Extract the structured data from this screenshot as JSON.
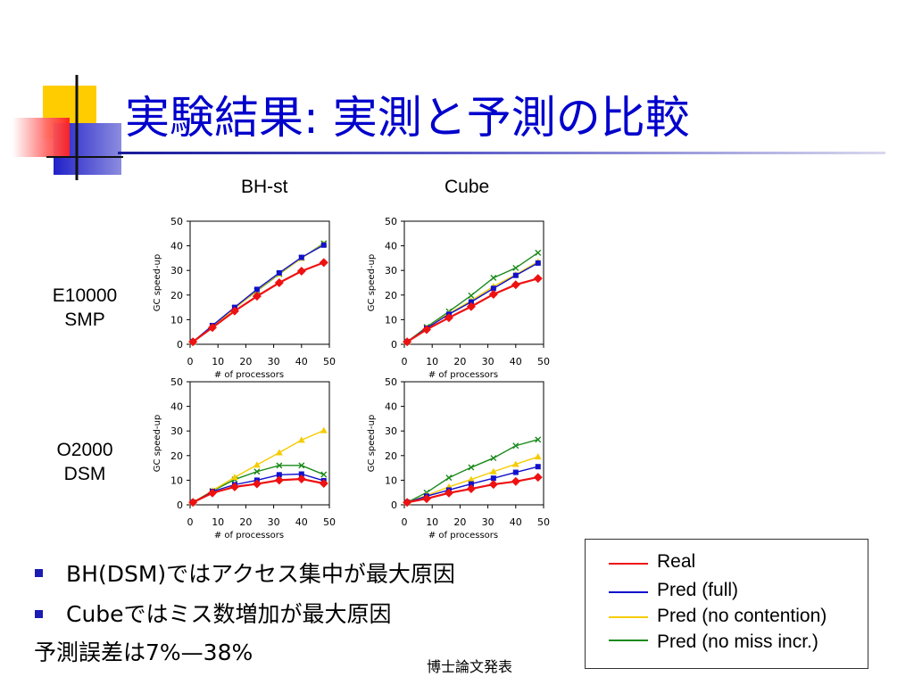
{
  "slide": {
    "title": "実験結果: 実測と予測の比較",
    "column_labels": [
      "BH-st",
      "Cube"
    ],
    "row_labels": [
      [
        "E10000",
        "SMP"
      ],
      [
        "O2000",
        "DSM"
      ]
    ],
    "bullets": [
      "BH(DSM)ではアクセス集中が最大原因",
      "Cubeではミス数増加が最大原因"
    ],
    "note": "予測誤差は7%—38%",
    "footer": "博士論文発表"
  },
  "legend": [
    {
      "label": "Real",
      "color": "#ee1111"
    },
    {
      "label": "Pred (full)",
      "color": "#1010cc"
    },
    {
      "label": "Pred (no contention)",
      "color": "#f5cc00"
    },
    {
      "label": "Pred (no miss incr.)",
      "color": "#1a8a1a"
    }
  ],
  "chart_data": [
    {
      "type": "line",
      "xlabel": "# of processors",
      "ylabel": "GC speed-up",
      "xlim": [
        0,
        50
      ],
      "ylim": [
        0,
        50
      ],
      "xticks": [
        0,
        10,
        20,
        30,
        40,
        50
      ],
      "yticks": [
        0,
        10,
        20,
        30,
        40,
        50
      ],
      "x": [
        1,
        8,
        16,
        24,
        32,
        40,
        48
      ],
      "series": [
        {
          "name": "Real",
          "values": [
            1,
            6.8,
            13.5,
            19.5,
            25,
            29.7,
            33.2
          ]
        },
        {
          "name": "Pred (full)",
          "values": [
            1,
            7.6,
            15,
            22.3,
            29,
            35.3,
            40.3
          ]
        },
        {
          "name": "Pred (no contention)",
          "values": [
            1,
            7.4,
            14.5,
            22,
            28.7,
            35,
            40.7
          ]
        },
        {
          "name": "Pred (no miss incr.)",
          "values": [
            1,
            7.5,
            14.7,
            21.7,
            28.5,
            35,
            41
          ]
        }
      ]
    },
    {
      "type": "line",
      "xlabel": "# of processors",
      "ylabel": "GC speed-up",
      "xlim": [
        0,
        50
      ],
      "ylim": [
        0,
        50
      ],
      "xticks": [
        0,
        10,
        20,
        30,
        40,
        50
      ],
      "yticks": [
        0,
        10,
        20,
        30,
        40,
        50
      ],
      "x": [
        1,
        8,
        16,
        24,
        32,
        40,
        48
      ],
      "series": [
        {
          "name": "Real",
          "values": [
            1,
            6,
            10.8,
            15.3,
            20.3,
            24.2,
            26.7
          ]
        },
        {
          "name": "Pred (full)",
          "values": [
            1,
            6.5,
            12.2,
            17.2,
            22.7,
            28,
            33
          ]
        },
        {
          "name": "Pred (no contention)",
          "values": [
            1,
            6.5,
            12.5,
            17.7,
            23.5,
            28.3,
            33.5
          ]
        },
        {
          "name": "Pred (no miss incr.)",
          "values": [
            1,
            7,
            13.3,
            19.8,
            27,
            31,
            37.2
          ]
        }
      ]
    },
    {
      "type": "line",
      "xlabel": "# of processors",
      "ylabel": "GC speed-up",
      "xlim": [
        0,
        50
      ],
      "ylim": [
        0,
        50
      ],
      "xticks": [
        0,
        10,
        20,
        30,
        40,
        50
      ],
      "yticks": [
        0,
        10,
        20,
        30,
        40,
        50
      ],
      "x": [
        1,
        8,
        16,
        24,
        32,
        40,
        48
      ],
      "series": [
        {
          "name": "Real",
          "values": [
            1,
            4.8,
            7.3,
            8.5,
            10,
            10.5,
            8.7
          ]
        },
        {
          "name": "Pred (full)",
          "values": [
            1,
            5.4,
            8.2,
            10,
            12.2,
            12.5,
            9.8
          ]
        },
        {
          "name": "Pred (no contention)",
          "values": [
            1,
            5.8,
            11.2,
            16.2,
            21.2,
            26.3,
            30.2
          ]
        },
        {
          "name": "Pred (no miss incr.)",
          "values": [
            1,
            5.6,
            10.3,
            13.5,
            16,
            16,
            12.3
          ]
        }
      ]
    },
    {
      "type": "line",
      "xlabel": "# of processors",
      "ylabel": "GC speed-up",
      "xlim": [
        0,
        50
      ],
      "ylim": [
        0,
        50
      ],
      "xticks": [
        0,
        10,
        20,
        30,
        40,
        50
      ],
      "yticks": [
        0,
        10,
        20,
        30,
        40,
        50
      ],
      "x": [
        1,
        8,
        16,
        24,
        32,
        40,
        48
      ],
      "series": [
        {
          "name": "Real",
          "values": [
            1,
            2.5,
            4.8,
            6.5,
            8.3,
            9.5,
            11.2
          ]
        },
        {
          "name": "Pred (full)",
          "values": [
            1,
            3.5,
            6,
            8.5,
            10.8,
            13.2,
            15.5
          ]
        },
        {
          "name": "Pred (no contention)",
          "values": [
            1,
            3.8,
            7.3,
            10.3,
            13.5,
            16.5,
            19.5
          ]
        },
        {
          "name": "Pred (no miss incr.)",
          "values": [
            1,
            5,
            11,
            15.2,
            19,
            24,
            26.5
          ]
        }
      ]
    }
  ]
}
